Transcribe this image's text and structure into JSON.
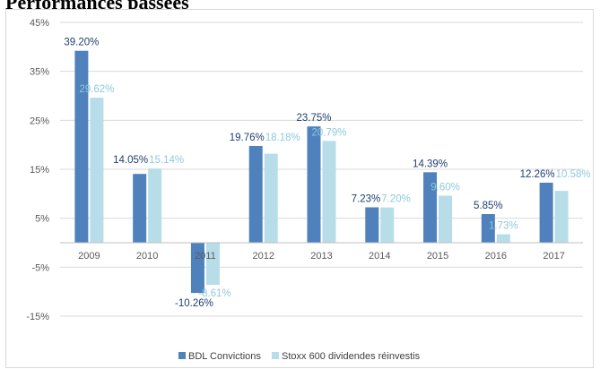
{
  "page": {
    "title": "Performances passées"
  },
  "chart_data": {
    "type": "bar",
    "categories": [
      "2009",
      "2010",
      "2011",
      "2012",
      "2013",
      "2014",
      "2015",
      "2016",
      "2017"
    ],
    "series": [
      {
        "name": "BDL Convictions",
        "color": "#4f81bd",
        "label_color": "#1f3f6e",
        "values": [
          39.2,
          14.05,
          -10.26,
          19.76,
          23.75,
          7.23,
          14.39,
          5.85,
          12.26
        ],
        "labels": [
          "39.20%",
          "14.05%",
          "-10.26%",
          "19.76%",
          "23.75%",
          "7.23%",
          "14.39%",
          "5.85%",
          "12.26%"
        ]
      },
      {
        "name": "Stoxx 600 dividendes réinvestis",
        "color": "#b7dde8",
        "label_color": "#8ec9dc",
        "values": [
          29.62,
          15.14,
          -8.61,
          18.18,
          20.79,
          7.2,
          9.6,
          1.73,
          10.58
        ],
        "labels": [
          "29.62%",
          "15.14%",
          "-8.61%",
          "18.18%",
          "20.79%",
          "7.20%",
          "9.60%",
          "1.73%",
          "10.58%"
        ]
      }
    ],
    "yticks": [
      45,
      35,
      25,
      15,
      5,
      -5,
      -15
    ],
    "ytick_labels": [
      "45%",
      "35%",
      "25%",
      "15%",
      "5%",
      "-5%",
      "-15%"
    ],
    "ylim": [
      -15,
      45
    ],
    "grid": true,
    "legend_position": "bottom",
    "title": "",
    "xlabel": "",
    "ylabel": ""
  }
}
